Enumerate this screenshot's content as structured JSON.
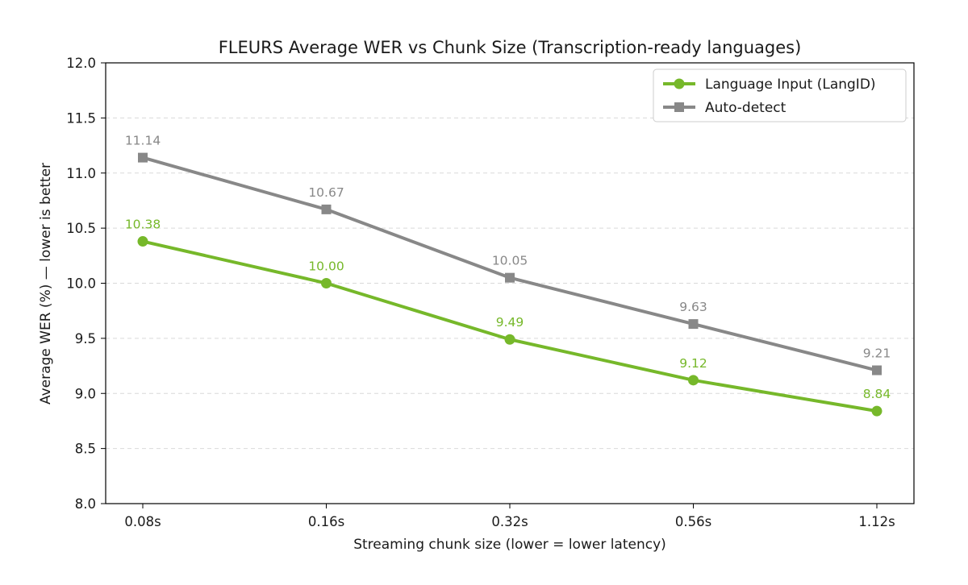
{
  "chart_data": {
    "type": "line",
    "title": "FLEURS Average WER vs Chunk Size (Transcription-ready languages)",
    "xlabel": "Streaming chunk size (lower = lower latency)",
    "ylabel": "Average WER (%)  —  lower is better",
    "categories": [
      "0.08s",
      "0.16s",
      "0.32s",
      "0.56s",
      "1.12s"
    ],
    "ylim": [
      8.0,
      12.0
    ],
    "yticks": [
      8.0,
      8.5,
      9.0,
      9.5,
      10.0,
      10.5,
      11.0,
      11.5,
      12.0
    ],
    "ytick_labels": [
      "8.0",
      "8.5",
      "9.0",
      "9.5",
      "10.0",
      "10.5",
      "11.0",
      "11.5",
      "12.0"
    ],
    "grid": "horizontal dashed",
    "legend_position": "top-right",
    "series": [
      {
        "name": "Language Input (LangID)",
        "marker": "circle",
        "color": "#76b82a",
        "values": [
          10.38,
          10.0,
          9.49,
          9.12,
          8.84
        ],
        "labels": [
          "10.38",
          "10.00",
          "9.49",
          "9.12",
          "8.84"
        ]
      },
      {
        "name": "Auto-detect",
        "marker": "square",
        "color": "#888888",
        "values": [
          11.14,
          10.67,
          10.05,
          9.63,
          9.21
        ],
        "labels": [
          "11.14",
          "10.67",
          "10.05",
          "9.63",
          "9.21"
        ]
      }
    ]
  }
}
